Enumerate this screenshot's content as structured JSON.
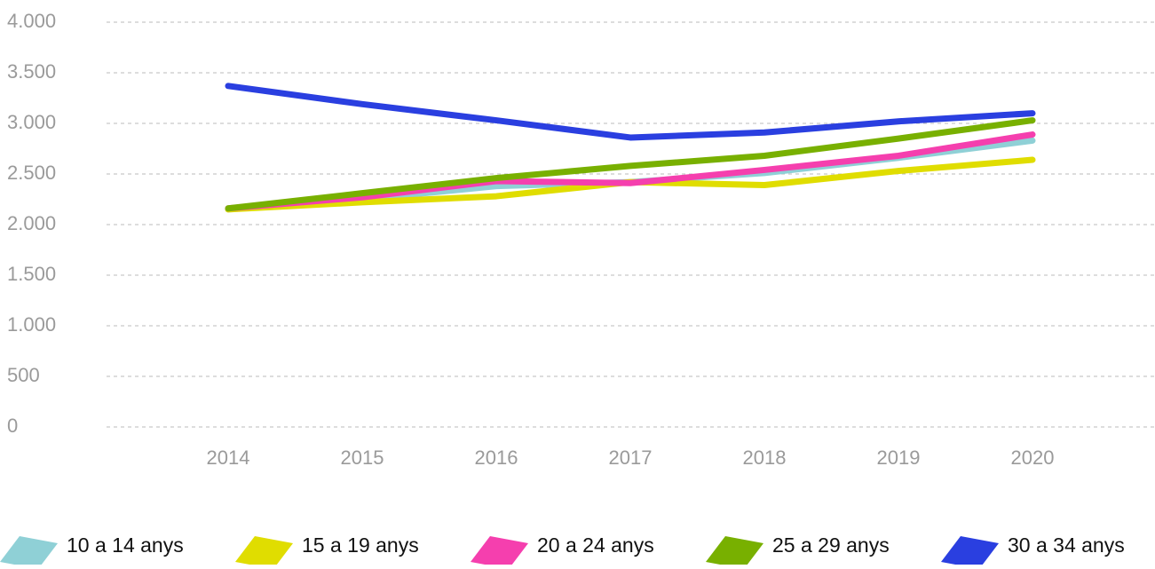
{
  "chart_data": {
    "type": "line",
    "categories": [
      "2014",
      "2015",
      "2016",
      "2017",
      "2018",
      "2019",
      "2020"
    ],
    "series": [
      {
        "name": "10 a 14 anys",
        "color": "#8fd0d6",
        "values": [
          2150,
          2250,
          2380,
          2420,
          2510,
          2660,
          2830
        ]
      },
      {
        "name": "15 a 19 anys",
        "color": "#e0dd00",
        "values": [
          2150,
          2220,
          2280,
          2420,
          2390,
          2530,
          2640
        ]
      },
      {
        "name": "20 a 24 anys",
        "color": "#f53fae",
        "values": [
          2160,
          2270,
          2430,
          2410,
          2540,
          2680,
          2890
        ]
      },
      {
        "name": "25 a 29 anys",
        "color": "#78b000",
        "values": [
          2160,
          2310,
          2460,
          2580,
          2680,
          2850,
          3030
        ]
      },
      {
        "name": "30 a 34 anys",
        "color": "#2a3fe0",
        "values": [
          3370,
          3190,
          3030,
          2860,
          2910,
          3020,
          3100
        ]
      }
    ],
    "ylim": [
      0,
      4000
    ],
    "yticks": [
      0,
      500,
      {
        "value": 1000,
        "label": "1.000"
      },
      {
        "value": 1500,
        "label": "1.500"
      },
      {
        "value": 2000,
        "label": "2.000"
      },
      {
        "value": 2500,
        "label": "2.500"
      },
      {
        "value": 3000,
        "label": "3.000"
      },
      {
        "value": 3500,
        "label": "3.500"
      },
      {
        "value": 4000,
        "label": "4.000"
      }
    ],
    "grid": true,
    "legend": "bottom"
  }
}
